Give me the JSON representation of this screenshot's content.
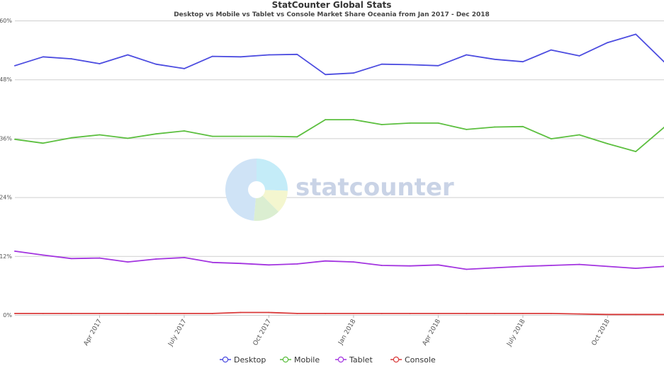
{
  "chart_data": {
    "type": "line",
    "title": "StatCounter Global Stats",
    "subtitle": "Desktop vs Mobile vs Tablet vs Console Market Share Oceania from Jan 2017 - Dec 2018",
    "ylim": [
      0,
      60
    ],
    "yticks": [
      "0%",
      "12%",
      "24%",
      "36%",
      "48%",
      "60%"
    ],
    "ytick_values": [
      0,
      12,
      24,
      36,
      48,
      60
    ],
    "x": [
      "Jan 2017",
      "Feb 2017",
      "Mar 2017",
      "Apr 2017",
      "May 2017",
      "June 2017",
      "July 2017",
      "Aug 2017",
      "Sept 2017",
      "Oct 2017",
      "Nov 2017",
      "Dec 2017",
      "Jan 2018",
      "Feb 2018",
      "Mar 2018",
      "Apr 2018",
      "May 2018",
      "June 2018",
      "July 2018",
      "Aug 2018",
      "Sept 2018",
      "Oct 2018",
      "Nov 2018",
      "Dec 2018"
    ],
    "xtick_labels": [
      {
        "index": 3,
        "label": "Apr 2017"
      },
      {
        "index": 6,
        "label": "July 2017"
      },
      {
        "index": 9,
        "label": "Oct 2017"
      },
      {
        "index": 12,
        "label": "Jan 2018"
      },
      {
        "index": 15,
        "label": "Apr 2018"
      },
      {
        "index": 18,
        "label": "July 2018"
      },
      {
        "index": 21,
        "label": "Oct 2018"
      }
    ],
    "grid": true,
    "legend_position": "bottom-center",
    "series": [
      {
        "name": "Desktop",
        "color": "#4c4ce0",
        "values": [
          50.8,
          52.6,
          52.2,
          51.2,
          53.0,
          51.1,
          50.2,
          52.7,
          52.6,
          53.0,
          53.1,
          49.0,
          49.3,
          51.1,
          51.0,
          50.8,
          53.0,
          52.1,
          51.6,
          54.0,
          52.8,
          55.5,
          57.2,
          51.6
        ]
      },
      {
        "name": "Mobile",
        "color": "#5cbf3f",
        "values": [
          35.8,
          35.0,
          36.1,
          36.7,
          36.0,
          36.9,
          37.5,
          36.4,
          36.4,
          36.4,
          36.3,
          39.8,
          39.8,
          38.8,
          39.1,
          39.1,
          37.8,
          38.3,
          38.4,
          35.9,
          36.7,
          34.9,
          33.3,
          38.2
        ]
      },
      {
        "name": "Tablet",
        "color": "#a334e0",
        "values": [
          13.0,
          12.2,
          11.5,
          11.6,
          10.8,
          11.4,
          11.7,
          10.7,
          10.5,
          10.2,
          10.4,
          11.0,
          10.8,
          10.1,
          10.0,
          10.2,
          9.3,
          9.6,
          9.9,
          10.1,
          10.3,
          9.9,
          9.5,
          9.9
        ]
      },
      {
        "name": "Console",
        "color": "#d93a3a",
        "values": [
          0.3,
          0.3,
          0.3,
          0.3,
          0.3,
          0.3,
          0.3,
          0.3,
          0.5,
          0.5,
          0.3,
          0.3,
          0.3,
          0.3,
          0.3,
          0.3,
          0.3,
          0.3,
          0.3,
          0.3,
          0.2,
          0.1,
          0.1,
          0.1
        ]
      }
    ]
  },
  "watermark": {
    "text": "statcounter",
    "colors": [
      "#cfe3f6",
      "#c4ecf8",
      "#f4f6cf",
      "#dbeed1"
    ]
  }
}
